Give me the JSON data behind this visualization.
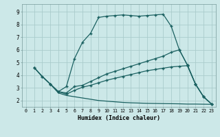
{
  "xlabel": "Humidex (Indice chaleur)",
  "bg_color": "#cce8e8",
  "grid_color": "#aacccc",
  "line_color": "#1a6060",
  "xlim": [
    -0.5,
    23.5
  ],
  "ylim": [
    1.5,
    9.6
  ],
  "xticks": [
    0,
    1,
    2,
    3,
    4,
    5,
    6,
    7,
    8,
    9,
    10,
    11,
    12,
    13,
    14,
    15,
    16,
    17,
    18,
    19,
    20,
    21,
    22,
    23
  ],
  "yticks": [
    2,
    3,
    4,
    5,
    6,
    7,
    8,
    9
  ],
  "line1_x": [
    1,
    2,
    3,
    4,
    5,
    6,
    7,
    8,
    9,
    10,
    11,
    12,
    13,
    14,
    15,
    16,
    17,
    18,
    19,
    20,
    21,
    22,
    23
  ],
  "line1_y": [
    4.6,
    3.9,
    3.3,
    2.7,
    3.1,
    5.3,
    6.6,
    7.3,
    8.55,
    8.65,
    8.7,
    8.75,
    8.7,
    8.65,
    8.7,
    8.75,
    8.8,
    7.85,
    6.0,
    4.8,
    3.3,
    2.3,
    1.72
  ],
  "line2_x": [
    1,
    2,
    3,
    4,
    5,
    6,
    7,
    8,
    9,
    10,
    11,
    12,
    13,
    14,
    15,
    16,
    17,
    18,
    19,
    20,
    21,
    22,
    23
  ],
  "line2_y": [
    4.6,
    3.9,
    3.3,
    2.7,
    2.6,
    3.1,
    3.2,
    3.5,
    3.8,
    4.1,
    4.3,
    4.5,
    4.7,
    4.9,
    5.1,
    5.3,
    5.5,
    5.8,
    6.0,
    4.8,
    3.3,
    2.3,
    1.72
  ],
  "line3_x": [
    3,
    4,
    5,
    6,
    7,
    8,
    9,
    10,
    11,
    12,
    13,
    14,
    15,
    16,
    17,
    18,
    19,
    20,
    21,
    22,
    23
  ],
  "line3_y": [
    3.3,
    2.7,
    2.5,
    2.8,
    3.05,
    3.2,
    3.4,
    3.6,
    3.75,
    3.9,
    4.05,
    4.2,
    4.35,
    4.45,
    4.55,
    4.65,
    4.7,
    4.75,
    3.3,
    2.3,
    1.72
  ],
  "line4_x": [
    1,
    2,
    3,
    4,
    5,
    6,
    7,
    8,
    9,
    10,
    11,
    12,
    13,
    14,
    15,
    16,
    17,
    18,
    19,
    20,
    21,
    22,
    23
  ],
  "line4_y": [
    4.6,
    3.9,
    3.3,
    2.6,
    2.4,
    2.3,
    2.2,
    2.1,
    2.0,
    1.95,
    1.9,
    1.85,
    1.82,
    1.8,
    1.78,
    1.77,
    1.76,
    1.75,
    1.74,
    1.72,
    1.72,
    1.71,
    1.7
  ]
}
